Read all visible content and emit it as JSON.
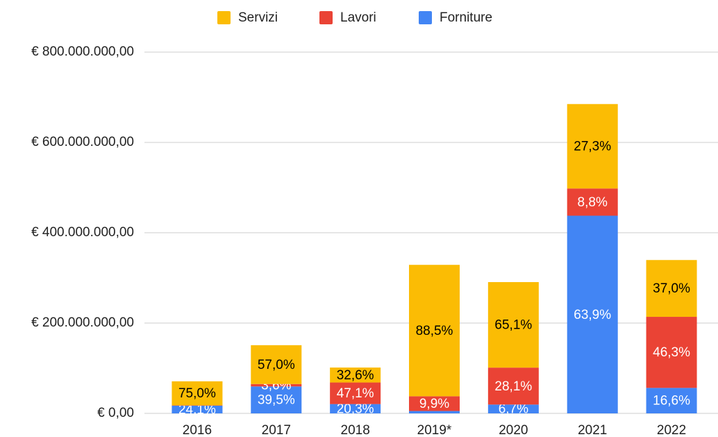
{
  "chart_data": {
    "type": "stacked_bar",
    "categories": [
      "2016",
      "2017",
      "2018",
      "2019*",
      "2020",
      "2021",
      "2022"
    ],
    "series": [
      {
        "name": "Forniture",
        "color": "#4285f4",
        "label_color": "#ffffff",
        "values": [
          17100000,
          59600000,
          20600000,
          5300000,
          19500000,
          437700000,
          56400000
        ],
        "value_labels": [
          "24,1%",
          "39,5%",
          "20,3%",
          null,
          "6,7%",
          "63,9%",
          "16,6%"
        ]
      },
      {
        "name": "Lavori",
        "color": "#ea4335",
        "label_color": "#ffffff",
        "values": [
          600000,
          5400000,
          47800000,
          32600000,
          81800000,
          60300000,
          157400000
        ],
        "value_labels": [
          null,
          "3,6%",
          "47,1%",
          "9,9%",
          "28,1%",
          "8,8%",
          "46,3%"
        ]
      },
      {
        "name": "Servizi",
        "color": "#fbbc04",
        "label_color": "#000000",
        "values": [
          53300000,
          86000000,
          33100000,
          291000000,
          189400000,
          187000000,
          125800000
        ],
        "value_labels": [
          "75,0%",
          "57,0%",
          "32,6%",
          "88,5%",
          "65,1%",
          "27,3%",
          "37,0%"
        ]
      }
    ],
    "legend_order": [
      2,
      1,
      0
    ],
    "ylim": [
      0,
      800000000
    ],
    "yticks": [
      {
        "value": 0,
        "label": "€ 0,00"
      },
      {
        "value": 200000000,
        "label": "€ 200.000.000,00"
      },
      {
        "value": 400000000,
        "label": "€ 400.000.000,00"
      },
      {
        "value": 600000000,
        "label": "€ 600.000.000,00"
      },
      {
        "value": 800000000,
        "label": "€ 800.000.000,00"
      }
    ],
    "grid": true,
    "legend": "top"
  }
}
